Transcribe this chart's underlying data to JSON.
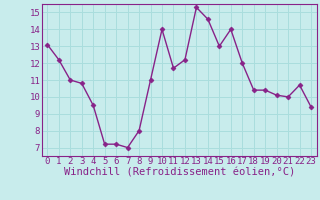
{
  "x": [
    0,
    1,
    2,
    3,
    4,
    5,
    6,
    7,
    8,
    9,
    10,
    11,
    12,
    13,
    14,
    15,
    16,
    17,
    18,
    19,
    20,
    21,
    22,
    23
  ],
  "y": [
    13.1,
    12.2,
    11.0,
    10.8,
    9.5,
    7.2,
    7.2,
    7.0,
    8.0,
    11.0,
    14.0,
    11.7,
    12.2,
    15.3,
    14.6,
    13.0,
    14.0,
    12.0,
    10.4,
    10.4,
    10.1,
    10.0,
    10.7,
    9.4
  ],
  "xlim": [
    -0.5,
    23.5
  ],
  "ylim": [
    6.5,
    15.5
  ],
  "yticks": [
    7,
    8,
    9,
    10,
    11,
    12,
    13,
    14,
    15
  ],
  "xticks": [
    0,
    1,
    2,
    3,
    4,
    5,
    6,
    7,
    8,
    9,
    10,
    11,
    12,
    13,
    14,
    15,
    16,
    17,
    18,
    19,
    20,
    21,
    22,
    23
  ],
  "xlabel": "Windchill (Refroidissement éolien,°C)",
  "line_color": "#882288",
  "marker": "D",
  "marker_size": 2.5,
  "line_width": 1.0,
  "bg_color": "#c8ecec",
  "grid_color": "#aadddd",
  "tick_label_fontsize": 6.5,
  "xlabel_fontsize": 7.5,
  "xlabel_color": "#882288",
  "tick_color": "#882288",
  "spine_color": "#882288"
}
